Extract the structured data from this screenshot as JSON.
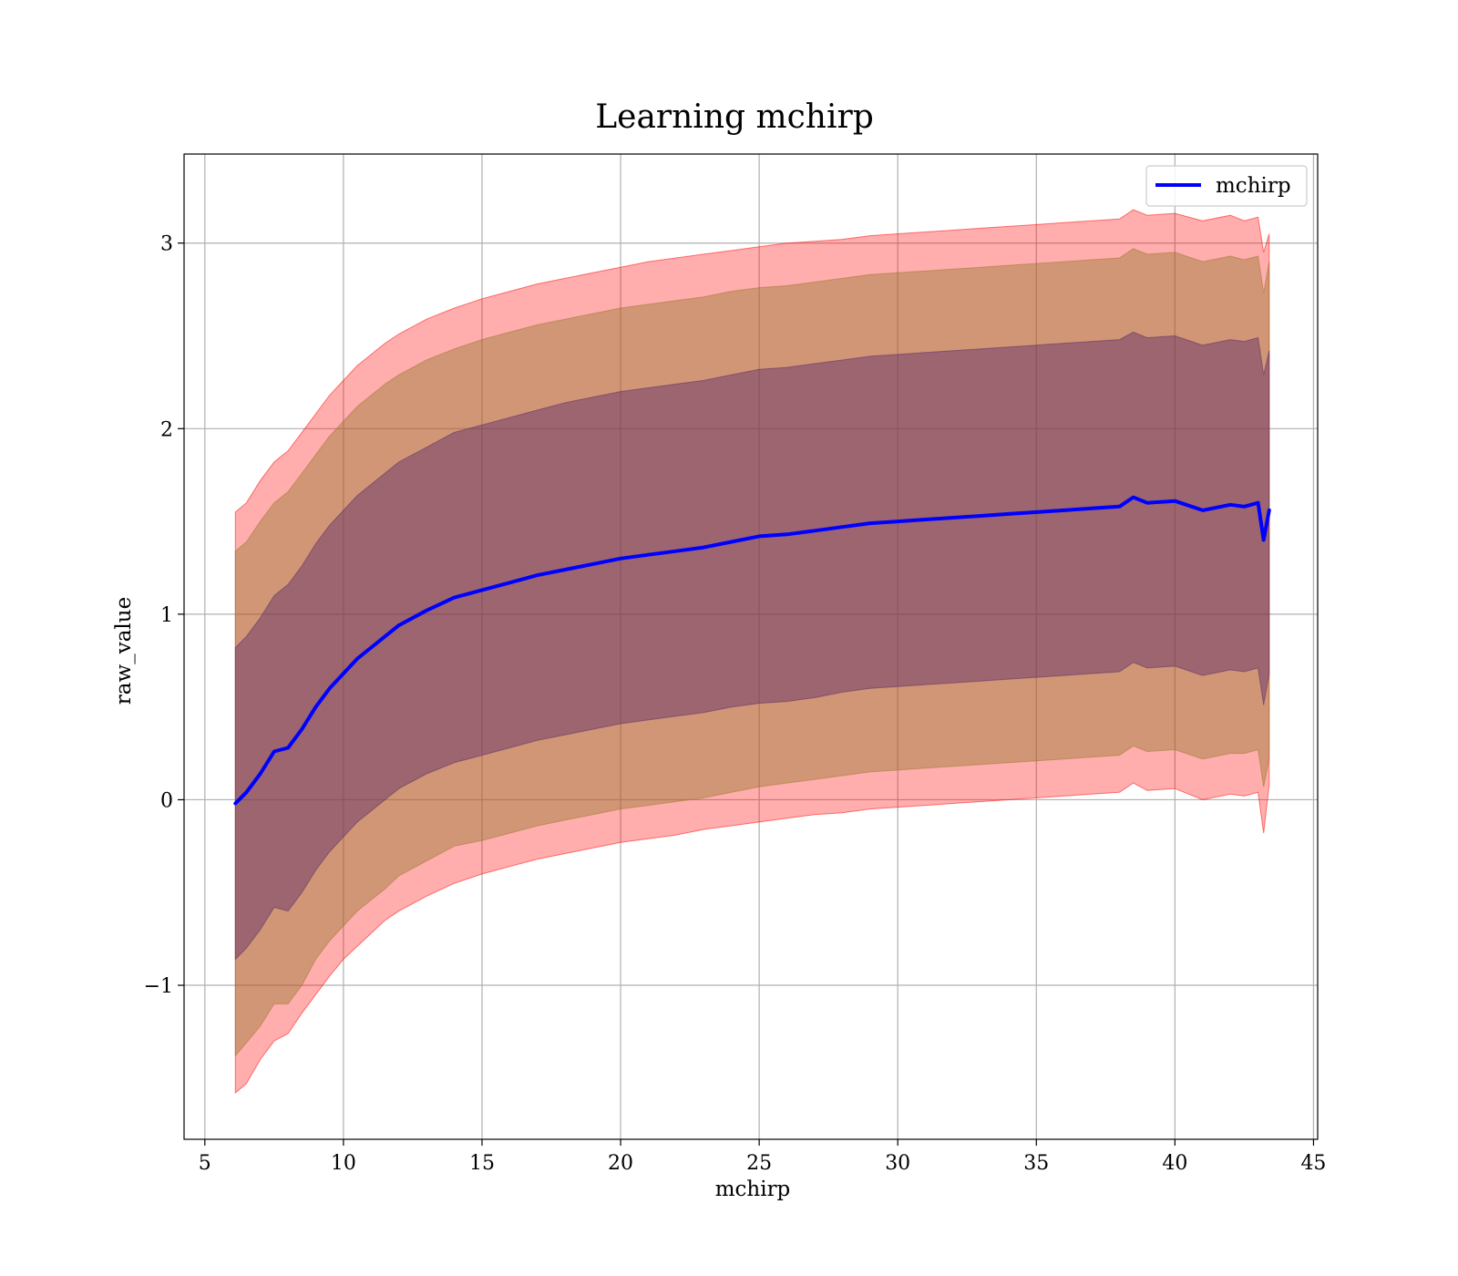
{
  "chart_data": {
    "type": "line",
    "title": "Learning mchirp",
    "xlabel": "mchirp",
    "ylabel": "raw_value",
    "xlim": [
      4.25,
      45.15
    ],
    "ylim": [
      -1.83,
      3.48
    ],
    "xticks": [
      5,
      10,
      15,
      20,
      25,
      30,
      35,
      40,
      45
    ],
    "yticks": [
      -1,
      0,
      1,
      2,
      3
    ],
    "ytick_labels": [
      "−1",
      "0",
      "1",
      "2",
      "3"
    ],
    "grid": true,
    "legend": {
      "position": "top-right",
      "entries": [
        "mchirp"
      ]
    },
    "series": [
      {
        "name": "mchirp",
        "color": "#0000ff",
        "x": [
          6.1,
          6.5,
          7.0,
          7.5,
          8.0,
          8.5,
          9.0,
          9.5,
          10.0,
          10.5,
          11.0,
          11.5,
          12.0,
          13.0,
          14.0,
          15.0,
          16.0,
          17.0,
          18.0,
          19.0,
          20.0,
          21.0,
          22.0,
          23.0,
          24.0,
          25.0,
          26.0,
          27.0,
          28.0,
          29.0,
          30.0,
          31.0,
          32.0,
          33.0,
          34.0,
          35.0,
          36.0,
          37.0,
          38.0,
          38.5,
          39.0,
          40.0,
          41.0,
          42.0,
          42.5,
          43.0,
          43.2,
          43.4
        ],
        "y": [
          -0.02,
          0.04,
          0.14,
          0.26,
          0.28,
          0.38,
          0.5,
          0.6,
          0.68,
          0.76,
          0.82,
          0.88,
          0.94,
          1.02,
          1.09,
          1.13,
          1.17,
          1.21,
          1.24,
          1.27,
          1.3,
          1.32,
          1.34,
          1.36,
          1.39,
          1.42,
          1.43,
          1.45,
          1.47,
          1.49,
          1.5,
          1.51,
          1.52,
          1.53,
          1.54,
          1.55,
          1.56,
          1.57,
          1.58,
          1.63,
          1.6,
          1.61,
          1.56,
          1.59,
          1.58,
          1.6,
          1.4,
          1.56
        ]
      }
    ],
    "bands": {
      "x": [
        6.1,
        6.5,
        7.0,
        7.5,
        8.0,
        8.5,
        9.0,
        9.5,
        10.0,
        10.5,
        11.0,
        11.5,
        12.0,
        13.0,
        14.0,
        15.0,
        16.0,
        17.0,
        18.0,
        19.0,
        20.0,
        21.0,
        22.0,
        23.0,
        24.0,
        25.0,
        26.0,
        27.0,
        28.0,
        29.0,
        30.0,
        31.0,
        32.0,
        33.0,
        34.0,
        35.0,
        36.0,
        37.0,
        38.0,
        38.5,
        39.0,
        40.0,
        41.0,
        42.0,
        42.5,
        43.0,
        43.2,
        43.4
      ],
      "layers": [
        {
          "color": "#ff0000",
          "opacity": 0.32,
          "upper": [
            1.55,
            1.6,
            1.72,
            1.82,
            1.88,
            1.98,
            2.08,
            2.18,
            2.26,
            2.34,
            2.4,
            2.46,
            2.51,
            2.59,
            2.65,
            2.7,
            2.74,
            2.78,
            2.81,
            2.84,
            2.87,
            2.9,
            2.92,
            2.94,
            2.96,
            2.98,
            3.0,
            3.01,
            3.02,
            3.04,
            3.05,
            3.06,
            3.07,
            3.08,
            3.09,
            3.1,
            3.11,
            3.12,
            3.13,
            3.18,
            3.15,
            3.16,
            3.12,
            3.15,
            3.12,
            3.14,
            2.95,
            3.05
          ],
          "lower": [
            -1.58,
            -1.53,
            -1.4,
            -1.3,
            -1.26,
            -1.15,
            -1.05,
            -0.95,
            -0.86,
            -0.79,
            -0.72,
            -0.65,
            -0.6,
            -0.52,
            -0.45,
            -0.4,
            -0.36,
            -0.32,
            -0.29,
            -0.26,
            -0.23,
            -0.21,
            -0.19,
            -0.16,
            -0.14,
            -0.12,
            -0.1,
            -0.08,
            -0.07,
            -0.05,
            -0.04,
            -0.03,
            -0.02,
            -0.01,
            0.0,
            0.01,
            0.02,
            0.03,
            0.04,
            0.09,
            0.05,
            0.06,
            0.0,
            0.03,
            0.02,
            0.04,
            -0.18,
            0.08
          ]
        },
        {
          "color": "#9a7a30",
          "opacity": 0.45,
          "upper": [
            1.34,
            1.39,
            1.5,
            1.6,
            1.66,
            1.76,
            1.86,
            1.96,
            2.04,
            2.12,
            2.18,
            2.24,
            2.29,
            2.37,
            2.43,
            2.48,
            2.52,
            2.56,
            2.59,
            2.62,
            2.65,
            2.67,
            2.69,
            2.71,
            2.74,
            2.76,
            2.77,
            2.79,
            2.81,
            2.83,
            2.84,
            2.85,
            2.86,
            2.87,
            2.88,
            2.89,
            2.9,
            2.91,
            2.92,
            2.97,
            2.94,
            2.95,
            2.9,
            2.93,
            2.91,
            2.93,
            2.73,
            2.9
          ],
          "lower": [
            -1.38,
            -1.31,
            -1.22,
            -1.1,
            -1.1,
            -1.0,
            -0.86,
            -0.76,
            -0.68,
            -0.6,
            -0.54,
            -0.48,
            -0.41,
            -0.33,
            -0.25,
            -0.22,
            -0.18,
            -0.14,
            -0.11,
            -0.08,
            -0.05,
            -0.03,
            -0.01,
            0.01,
            0.04,
            0.07,
            0.09,
            0.11,
            0.13,
            0.15,
            0.16,
            0.17,
            0.18,
            0.19,
            0.2,
            0.21,
            0.22,
            0.23,
            0.24,
            0.29,
            0.26,
            0.27,
            0.22,
            0.25,
            0.25,
            0.27,
            0.07,
            0.22
          ]
        },
        {
          "color": "#5a2a6a",
          "opacity": 0.45,
          "upper": [
            0.82,
            0.88,
            0.98,
            1.1,
            1.16,
            1.26,
            1.38,
            1.48,
            1.56,
            1.64,
            1.7,
            1.76,
            1.82,
            1.9,
            1.98,
            2.02,
            2.06,
            2.1,
            2.14,
            2.17,
            2.2,
            2.22,
            2.24,
            2.26,
            2.29,
            2.32,
            2.33,
            2.35,
            2.37,
            2.39,
            2.4,
            2.41,
            2.42,
            2.43,
            2.44,
            2.45,
            2.46,
            2.47,
            2.48,
            2.52,
            2.49,
            2.5,
            2.45,
            2.48,
            2.47,
            2.49,
            2.29,
            2.42
          ],
          "lower": [
            -0.86,
            -0.8,
            -0.7,
            -0.58,
            -0.6,
            -0.5,
            -0.38,
            -0.28,
            -0.2,
            -0.12,
            -0.06,
            0.0,
            0.06,
            0.14,
            0.2,
            0.24,
            0.28,
            0.32,
            0.35,
            0.38,
            0.41,
            0.43,
            0.45,
            0.47,
            0.5,
            0.52,
            0.53,
            0.55,
            0.58,
            0.6,
            0.61,
            0.62,
            0.63,
            0.64,
            0.65,
            0.66,
            0.67,
            0.68,
            0.69,
            0.74,
            0.71,
            0.72,
            0.67,
            0.7,
            0.69,
            0.71,
            0.51,
            0.68
          ]
        }
      ]
    }
  }
}
